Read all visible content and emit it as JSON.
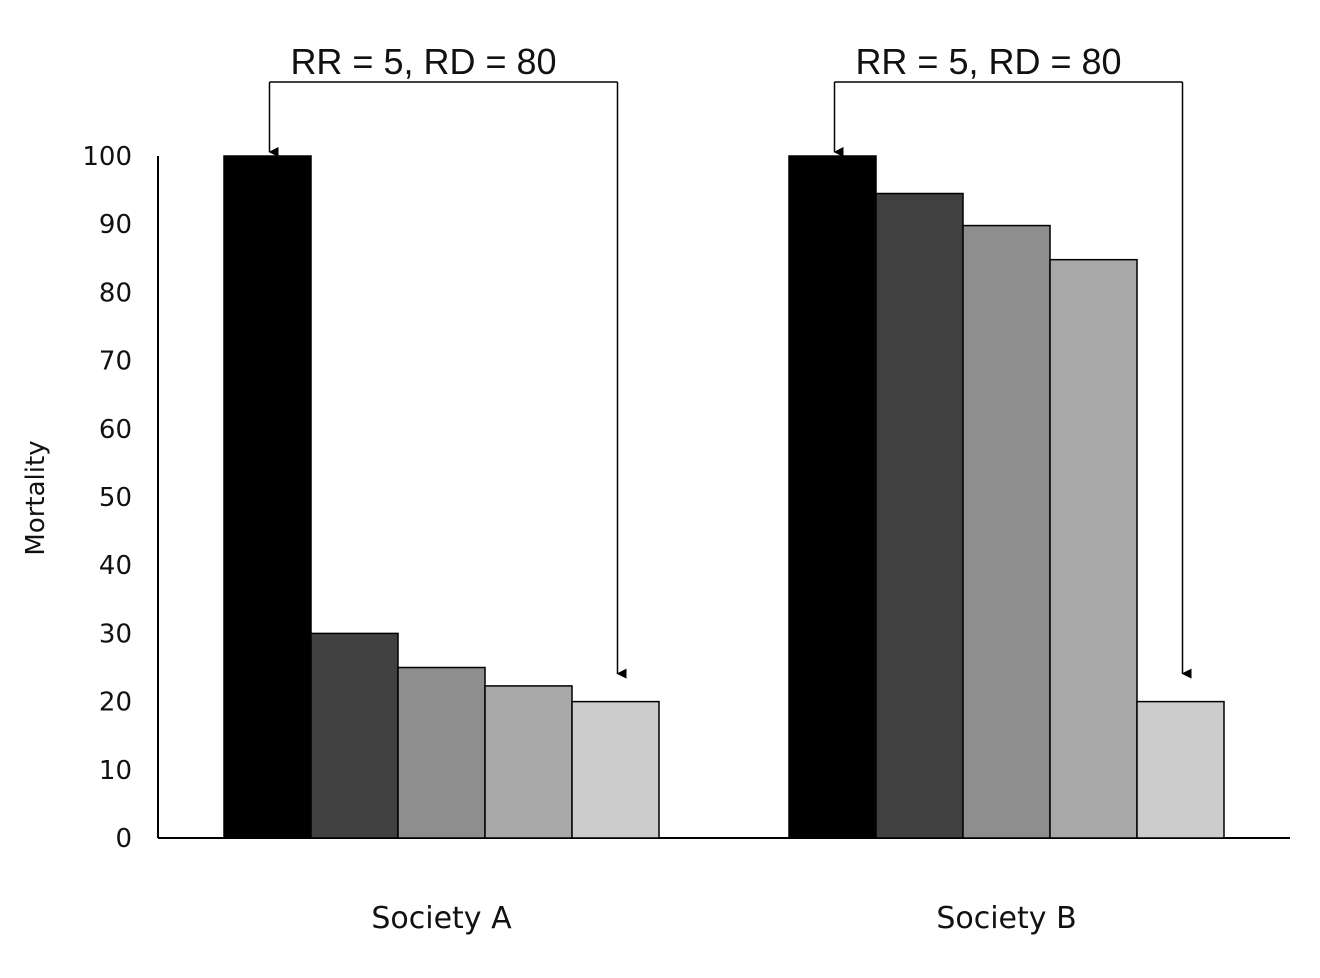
{
  "chart_data": {
    "type": "bar",
    "ylabel": "Mortality",
    "ylim": [
      0,
      100
    ],
    "yticks": [
      0,
      10,
      20,
      30,
      40,
      50,
      60,
      70,
      80,
      90,
      100
    ],
    "grid": false,
    "categories": [
      "Society A",
      "Society B"
    ],
    "series": [
      {
        "color": "#000000",
        "values": [
          100,
          100
        ]
      },
      {
        "color": "#404040",
        "values": [
          30,
          94.5
        ]
      },
      {
        "color": "#8e8e8e",
        "values": [
          25,
          89.8
        ]
      },
      {
        "color": "#a8a8a8",
        "values": [
          22.3,
          84.8
        ]
      },
      {
        "color": "#cccccc",
        "values": [
          20,
          20
        ]
      }
    ],
    "annotations": [
      {
        "text": "RR = 5, RD = 80",
        "group": 0,
        "from_bar": 0,
        "to_bar": 4
      },
      {
        "text": "RR = 5, RD = 80",
        "group": 1,
        "from_bar": 0,
        "to_bar": 4
      }
    ]
  }
}
